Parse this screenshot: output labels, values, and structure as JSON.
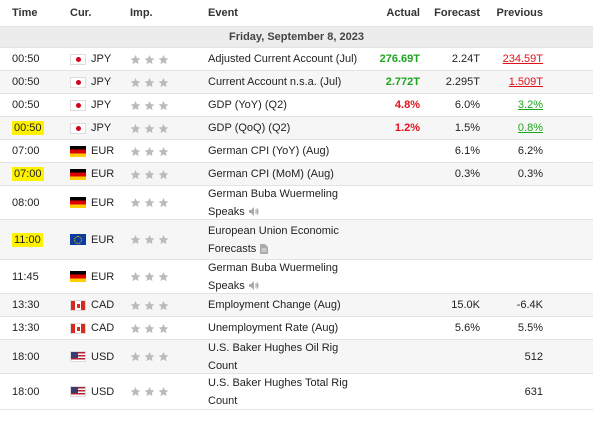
{
  "header": {
    "time": "Time",
    "cur": "Cur.",
    "imp": "Imp.",
    "event": "Event",
    "actual": "Actual",
    "forecast": "Forecast",
    "previous": "Previous"
  },
  "day": "Friday, September 8, 2023",
  "rows": [
    {
      "time": "00:50",
      "cur": "JPY",
      "flag": "jp-flag-icon",
      "imp_stars": 2,
      "event": "Adjusted Current Account (Jul)",
      "actual": "276.69T",
      "actual_color": "#1ea51e",
      "forecast": "2.24T",
      "previous": "234.59T",
      "previous_color": "#e0121b",
      "highlight": false
    },
    {
      "time": "00:50",
      "cur": "JPY",
      "flag": "jp-flag-icon",
      "imp_stars": 2,
      "event": "Current Account n.s.a. (Jul)",
      "actual": "2.772T",
      "actual_color": "#1ea51e",
      "forecast": "2.295T",
      "previous": "1.509T",
      "previous_color": "#e0121b",
      "highlight": false
    },
    {
      "time": "00:50",
      "cur": "JPY",
      "flag": "jp-flag-icon",
      "imp_stars": 2,
      "event": "GDP (YoY) (Q2)",
      "actual": "4.8%",
      "actual_color": "#e0121b",
      "forecast": "6.0%",
      "previous": "3.2%",
      "previous_color": "#1ea51e",
      "highlight": false
    },
    {
      "time": "00:50",
      "cur": "JPY",
      "flag": "jp-flag-icon",
      "imp_stars": 2,
      "event": "GDP (QoQ) (Q2)",
      "actual": "1.2%",
      "actual_color": "#e0121b",
      "forecast": "1.5%",
      "previous": "0.8%",
      "previous_color": "#1ea51e",
      "highlight": true
    },
    {
      "time": "07:00",
      "cur": "EUR",
      "flag": "de-flag-icon",
      "imp_stars": 2,
      "event": "German CPI (YoY) (Aug)",
      "actual": "",
      "forecast": "6.1%",
      "previous": "6.2%",
      "highlight": false
    },
    {
      "time": "07:00",
      "cur": "EUR",
      "flag": "de-flag-icon",
      "imp_stars": 2,
      "event": "German CPI (MoM) (Aug)",
      "actual": "",
      "forecast": "0.3%",
      "previous": "0.3%",
      "highlight": true
    },
    {
      "time": "08:00",
      "cur": "EUR",
      "flag": "de-flag-icon",
      "imp_stars": 2,
      "event": "German Buba Wuermeling Speaks",
      "icon": "speaker-icon",
      "actual": "",
      "forecast": "",
      "previous": "",
      "highlight": false
    },
    {
      "time": "11:00",
      "cur": "EUR",
      "flag": "eu-flag-icon",
      "imp_stars": 2,
      "event": "European Union Economic Forecasts",
      "icon": "document-icon",
      "actual": "",
      "forecast": "",
      "previous": "",
      "highlight": true
    },
    {
      "time": "11:45",
      "cur": "EUR",
      "flag": "de-flag-icon",
      "imp_stars": 2,
      "event": "German Buba Wuermeling Speaks",
      "icon": "speaker-icon",
      "actual": "",
      "forecast": "",
      "previous": "",
      "highlight": false
    },
    {
      "time": "13:30",
      "cur": "CAD",
      "flag": "ca-flag-icon",
      "imp_stars": 2,
      "event": "Employment Change (Aug)",
      "actual": "",
      "forecast": "15.0K",
      "previous": "-6.4K",
      "highlight": false
    },
    {
      "time": "13:30",
      "cur": "CAD",
      "flag": "ca-flag-icon",
      "imp_stars": 2,
      "event": "Unemployment Rate (Aug)",
      "actual": "",
      "forecast": "5.6%",
      "previous": "5.5%",
      "highlight": false
    },
    {
      "time": "18:00",
      "cur": "USD",
      "flag": "us-flag-icon",
      "imp_stars": 2,
      "event": "U.S. Baker Hughes Oil Rig Count",
      "actual": "",
      "forecast": "",
      "previous": "512",
      "highlight": false
    },
    {
      "time": "18:00",
      "cur": "USD",
      "flag": "us-flag-icon",
      "imp_stars": 2,
      "event": "U.S. Baker Hughes Total Rig Count",
      "actual": "",
      "forecast": "",
      "previous": "631",
      "highlight": false
    }
  ]
}
